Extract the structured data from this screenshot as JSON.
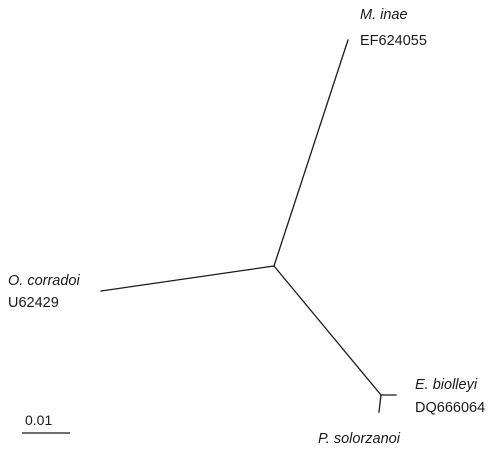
{
  "tree": {
    "leaves": [
      {
        "species": "M. inae",
        "accession": "EF624055"
      },
      {
        "species": "O. corradoi",
        "accession": "U62429"
      },
      {
        "species": "E. biolleyi",
        "accession": "DQ666064"
      },
      {
        "species": "P. solorzanoi",
        "accession": ""
      }
    ],
    "scale_bar": {
      "label": "0.01",
      "value": 0.01
    }
  }
}
